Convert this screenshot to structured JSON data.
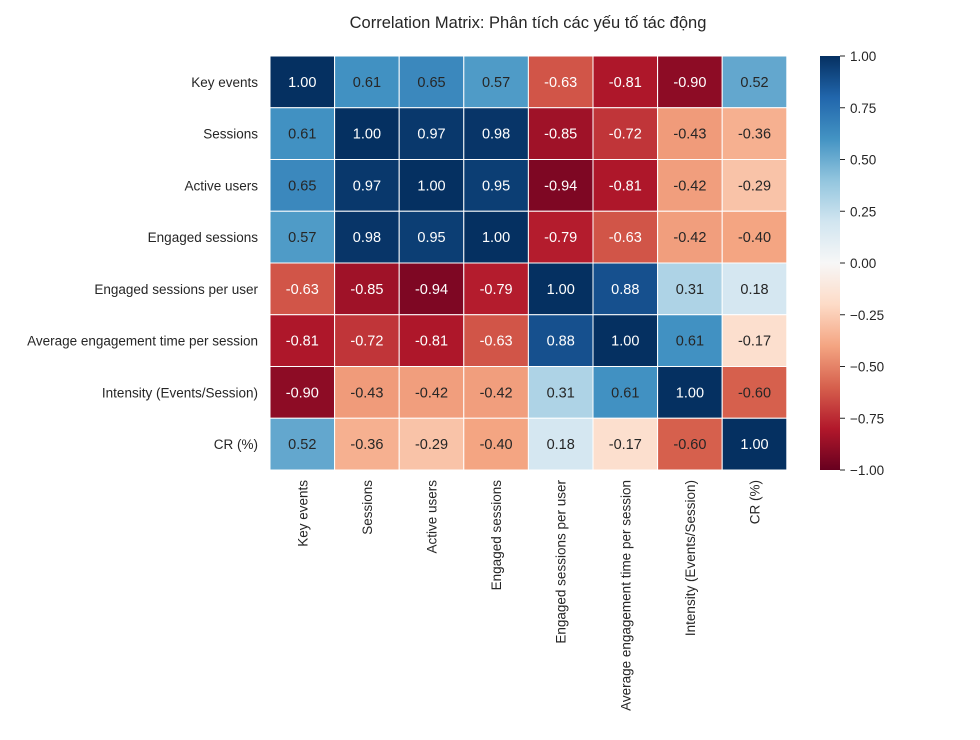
{
  "chart_data": {
    "type": "heatmap",
    "title": "Correlation Matrix: Phân tích các yếu tố tác động",
    "labels": [
      "Key events",
      "Sessions",
      "Active users",
      "Engaged sessions",
      "Engaged sessions per user",
      "Average engagement time per session",
      "Intensity (Events/Session)",
      "CR (%)"
    ],
    "matrix": [
      [
        1.0,
        0.61,
        0.65,
        0.57,
        -0.63,
        -0.81,
        -0.9,
        0.52
      ],
      [
        0.61,
        1.0,
        0.97,
        0.98,
        -0.85,
        -0.72,
        -0.43,
        -0.36
      ],
      [
        0.65,
        0.97,
        1.0,
        0.95,
        -0.94,
        -0.81,
        -0.42,
        -0.29
      ],
      [
        0.57,
        0.98,
        0.95,
        1.0,
        -0.79,
        -0.63,
        -0.42,
        -0.4
      ],
      [
        -0.63,
        -0.85,
        -0.94,
        -0.79,
        1.0,
        0.88,
        0.31,
        0.18
      ],
      [
        -0.81,
        -0.72,
        -0.81,
        -0.63,
        0.88,
        1.0,
        0.61,
        -0.17
      ],
      [
        -0.9,
        -0.43,
        -0.42,
        -0.42,
        0.31,
        0.61,
        1.0,
        -0.6
      ],
      [
        0.52,
        -0.36,
        -0.29,
        -0.4,
        0.18,
        -0.17,
        -0.6,
        1.0
      ]
    ],
    "colormap": "RdBu_r",
    "vmin": -1,
    "vmax": 1,
    "colorbar_ticks": [
      "1.00",
      "0.75",
      "0.50",
      "0.25",
      "0.00",
      "−0.25",
      "−0.50",
      "−0.75",
      "−1.00"
    ],
    "colorbar_values": [
      1,
      0.75,
      0.5,
      0.25,
      0,
      -0.25,
      -0.5,
      -0.75,
      -1
    ],
    "colormap_stops": [
      "#67001f",
      "#b2182b",
      "#d6604d",
      "#f4a582",
      "#fddbc7",
      "#f7f7f7",
      "#d1e5f0",
      "#92c5de",
      "#4393c3",
      "#2166ac",
      "#053061"
    ]
  }
}
